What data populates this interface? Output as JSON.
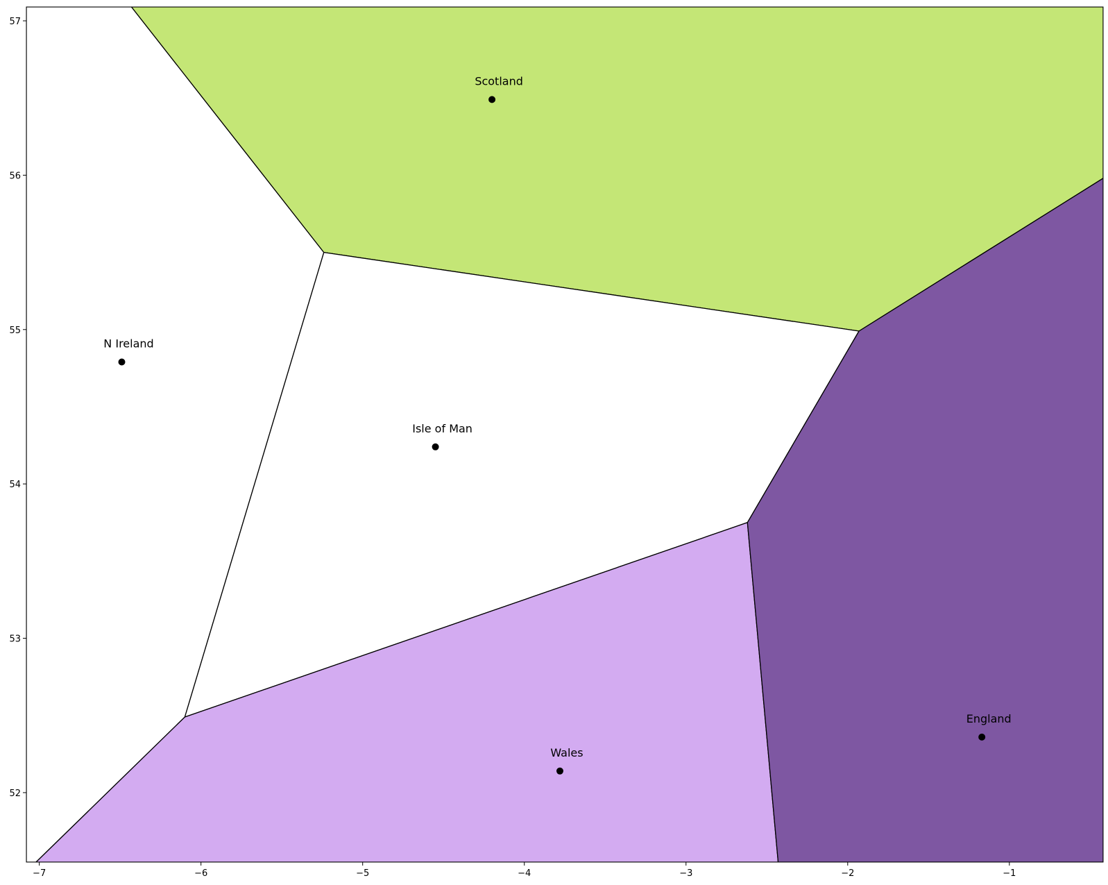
{
  "chart_data": {
    "type": "voronoi",
    "title": "",
    "xlabel": "",
    "ylabel": "",
    "xlim": [
      -7.08,
      -0.42
    ],
    "ylim": [
      51.55,
      57.09
    ],
    "grid": false,
    "legend": "none",
    "x_ticks": [
      -7,
      -6,
      -5,
      -4,
      -3,
      -2,
      -1
    ],
    "y_ticks": [
      52,
      53,
      54,
      55,
      56,
      57
    ],
    "x_tick_labels": [
      "−7",
      "−6",
      "−5",
      "−4",
      "−3",
      "−2",
      "−1"
    ],
    "y_tick_labels": [
      "52",
      "53",
      "54",
      "55",
      "56",
      "57"
    ],
    "regions": [
      {
        "name": "N Ireland",
        "color": "#ffffff",
        "vertices": [
          [
            -7.08,
            57.09
          ],
          [
            -6.43,
            57.09
          ],
          [
            -5.24,
            55.5
          ],
          [
            -6.1,
            52.49
          ],
          [
            -7.02,
            51.55
          ],
          [
            -7.08,
            51.55
          ]
        ]
      },
      {
        "name": "Scotland",
        "color": "#c4e676",
        "vertices": [
          [
            -6.43,
            57.09
          ],
          [
            -0.42,
            57.09
          ],
          [
            -0.42,
            55.98
          ],
          [
            -1.93,
            54.99
          ],
          [
            -5.24,
            55.5
          ]
        ]
      },
      {
        "name": "Isle of Man",
        "color": "#ffffff",
        "vertices": [
          [
            -5.24,
            55.5
          ],
          [
            -1.93,
            54.99
          ],
          [
            -2.62,
            53.75
          ],
          [
            -6.1,
            52.49
          ]
        ]
      },
      {
        "name": "Wales",
        "color": "#d3abf1",
        "vertices": [
          [
            -6.1,
            52.49
          ],
          [
            -2.62,
            53.75
          ],
          [
            -2.43,
            51.55
          ],
          [
            -7.02,
            51.55
          ]
        ]
      },
      {
        "name": "England",
        "color": "#7e57a2",
        "vertices": [
          [
            -1.93,
            54.99
          ],
          [
            -0.42,
            55.98
          ],
          [
            -0.42,
            51.55
          ],
          [
            -2.43,
            51.55
          ],
          [
            -2.62,
            53.75
          ]
        ]
      }
    ],
    "points": [
      {
        "label": "Scotland",
        "x": -4.2,
        "y": 56.49
      },
      {
        "label": "N Ireland",
        "x": -6.49,
        "y": 54.79
      },
      {
        "label": "Isle of Man",
        "x": -4.55,
        "y": 54.24
      },
      {
        "label": "Wales",
        "x": -3.78,
        "y": 52.14
      },
      {
        "label": "England",
        "x": -1.17,
        "y": 52.36
      }
    ]
  }
}
